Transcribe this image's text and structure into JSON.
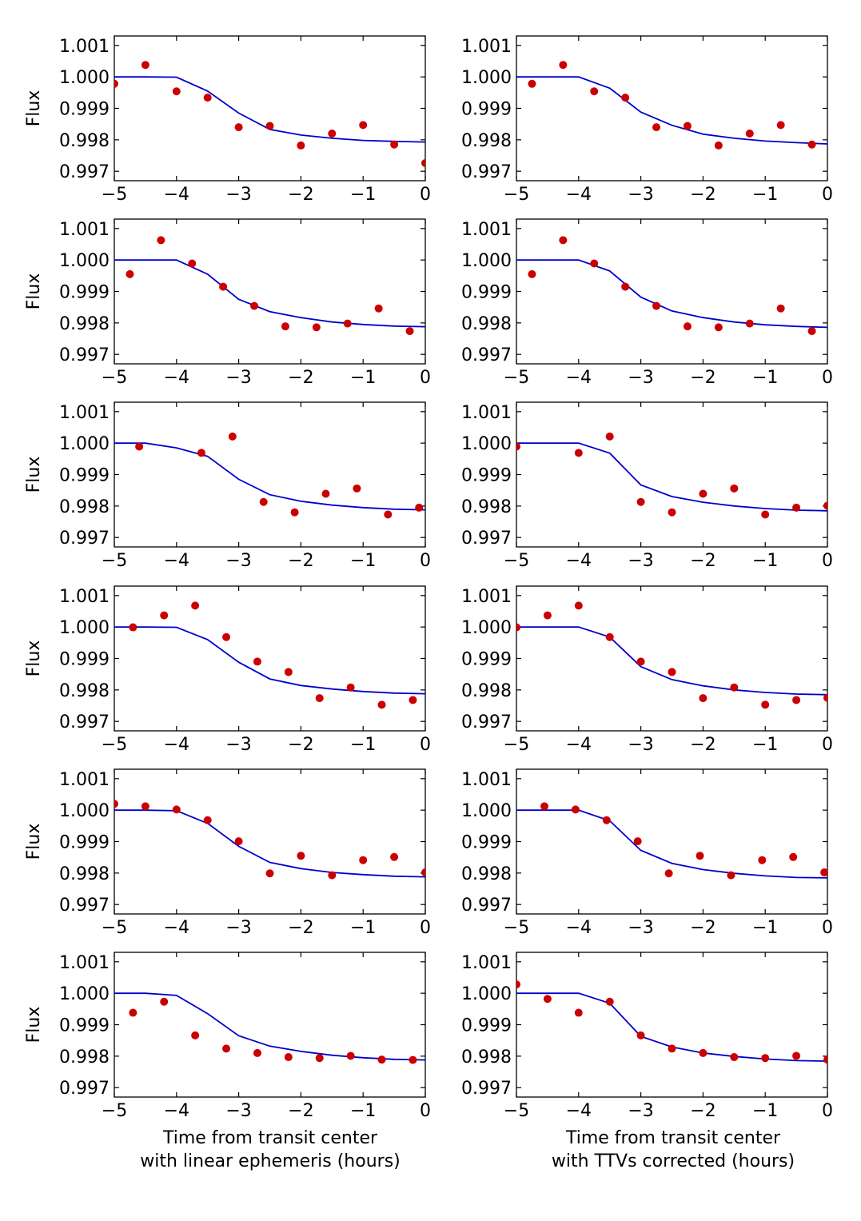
{
  "chart_data": {
    "type": "scatter",
    "layout": "6 rows x 2 columns",
    "xlim": [
      -5,
      0
    ],
    "ylim": [
      0.9967,
      1.0013
    ],
    "xticks": [
      -5,
      -4,
      -3,
      -2,
      -1,
      0
    ],
    "xtick_labels": [
      "−5",
      "−4",
      "−3",
      "−2",
      "−1",
      "0"
    ],
    "yticks": [
      1.001,
      1.0,
      0.999,
      0.998,
      0.997
    ],
    "ytick_labels": [
      "1.001",
      "1.000",
      "0.999",
      "0.998",
      "0.997"
    ],
    "ylabel": "Flux",
    "xlabels": [
      [
        "Time from transit center",
        "with linear ephemeris (hours)"
      ],
      [
        "Time from transit center",
        "with TTVs corrected (hours)"
      ]
    ],
    "series_styles": {
      "observed": {
        "marker": "circle",
        "color": "#cc0000"
      },
      "model": {
        "line": "solid",
        "color": "#0000cc"
      }
    },
    "panels": [
      {
        "row": 0,
        "col": 0,
        "model": {
          "x": [
            -5,
            -4.5,
            -4,
            -3.5,
            -3,
            -2.5,
            -2,
            -1.5,
            -1,
            -0.5,
            0
          ],
          "y": [
            1.0,
            1.0,
            0.99999,
            0.99955,
            0.99885,
            0.99833,
            0.99815,
            0.99805,
            0.99798,
            0.99795,
            0.99793
          ]
        },
        "points": {
          "x": [
            -5,
            -4.5,
            -4,
            -3.5,
            -3,
            -2.5,
            -2,
            -1.5,
            -1,
            -0.5,
            0
          ],
          "y": [
            0.99978,
            1.00038,
            0.99954,
            0.99934,
            0.9984,
            0.99844,
            0.99782,
            0.9982,
            0.99847,
            0.99785,
            0.99726
          ]
        }
      },
      {
        "row": 0,
        "col": 1,
        "model": {
          "x": [
            -5,
            -4.5,
            -4,
            -3.5,
            -3,
            -2.5,
            -2,
            -1.5,
            -1,
            -0.5,
            0
          ],
          "y": [
            1.0,
            1.0,
            1.0,
            0.99964,
            0.99888,
            0.99846,
            0.99818,
            0.99805,
            0.99796,
            0.99791,
            0.99787
          ]
        },
        "points": {
          "x": [
            -4.75,
            -4.25,
            -3.75,
            -3.25,
            -2.75,
            -2.25,
            -1.75,
            -1.25,
            -0.75,
            -0.25
          ],
          "y": [
            0.99978,
            1.00038,
            0.99954,
            0.99934,
            0.9984,
            0.99844,
            0.99782,
            0.9982,
            0.99847,
            0.99785
          ]
        }
      },
      {
        "row": 1,
        "col": 0,
        "model": {
          "x": [
            -5,
            -4.5,
            -4,
            -3.5,
            -3,
            -2.5,
            -2,
            -1.5,
            -1,
            -0.5,
            0
          ],
          "y": [
            1.0,
            1.0,
            1.0,
            0.99955,
            0.99875,
            0.99836,
            0.99817,
            0.99803,
            0.99795,
            0.9979,
            0.99788
          ]
        },
        "points": {
          "x": [
            -4.75,
            -4.25,
            -3.75,
            -3.25,
            -2.75,
            -2.25,
            -1.75,
            -1.25,
            -0.75,
            -0.25
          ],
          "y": [
            0.99955,
            1.00063,
            0.99989,
            0.99915,
            0.99854,
            0.99789,
            0.99786,
            0.99798,
            0.99846,
            0.99774
          ]
        }
      },
      {
        "row": 1,
        "col": 1,
        "model": {
          "x": [
            -5,
            -4.5,
            -4,
            -3.5,
            -3,
            -2.5,
            -2,
            -1.5,
            -1,
            -0.5,
            0
          ],
          "y": [
            1.0,
            1.0,
            1.0,
            0.99965,
            0.99882,
            0.99838,
            0.99817,
            0.99803,
            0.99794,
            0.99789,
            0.99786
          ]
        },
        "points": {
          "x": [
            -4.75,
            -4.25,
            -3.75,
            -3.25,
            -2.75,
            -2.25,
            -1.75,
            -1.25,
            -0.75,
            -0.25
          ],
          "y": [
            0.99955,
            1.00063,
            0.99989,
            0.99915,
            0.99854,
            0.99789,
            0.99786,
            0.99798,
            0.99846,
            0.99774
          ]
        }
      },
      {
        "row": 2,
        "col": 0,
        "model": {
          "x": [
            -5,
            -4.5,
            -4,
            -3.5,
            -3,
            -2.5,
            -2,
            -1.5,
            -1,
            -0.5,
            0
          ],
          "y": [
            1.0,
            1.0,
            0.99985,
            0.99958,
            0.99885,
            0.99836,
            0.99815,
            0.99803,
            0.99795,
            0.9979,
            0.99788
          ]
        },
        "points": {
          "x": [
            -4.6,
            -3.6,
            -3.1,
            -2.6,
            -2.1,
            -1.6,
            -1.1,
            -0.6,
            -0.1
          ],
          "y": [
            0.99989,
            0.99969,
            1.00021,
            0.99813,
            0.9978,
            0.99839,
            0.99856,
            0.99773,
            0.99795
          ]
        }
      },
      {
        "row": 2,
        "col": 1,
        "model": {
          "x": [
            -5,
            -4.5,
            -4,
            -3.5,
            -3,
            -2.5,
            -2,
            -1.5,
            -1,
            -0.5,
            0
          ],
          "y": [
            1.0,
            1.0,
            1.0,
            0.99968,
            0.99867,
            0.9983,
            0.99812,
            0.998,
            0.99792,
            0.99787,
            0.99785
          ]
        },
        "points": {
          "x": [
            -5,
            -4,
            -3.5,
            -3,
            -2.5,
            -2,
            -1.5,
            -1,
            -0.5,
            0
          ],
          "y": [
            0.99989,
            0.99969,
            1.00021,
            0.99813,
            0.9978,
            0.99839,
            0.99856,
            0.99773,
            0.99795,
            0.99801
          ]
        }
      },
      {
        "row": 3,
        "col": 0,
        "model": {
          "x": [
            -5,
            -4.5,
            -4,
            -3.5,
            -3,
            -2.5,
            -2,
            -1.5,
            -1,
            -0.5,
            0
          ],
          "y": [
            1.0,
            1.0,
            0.99999,
            0.9996,
            0.99888,
            0.99835,
            0.99814,
            0.99803,
            0.99795,
            0.9979,
            0.99788
          ]
        },
        "points": {
          "x": [
            -4.7,
            -4.2,
            -3.7,
            -3.2,
            -2.7,
            -2.2,
            -1.7,
            -1.2,
            -0.7,
            -0.2
          ],
          "y": [
            0.99999,
            1.00037,
            1.00068,
            0.99968,
            0.9989,
            0.99857,
            0.99774,
            0.99808,
            0.99753,
            0.99768
          ]
        }
      },
      {
        "row": 3,
        "col": 1,
        "model": {
          "x": [
            -5,
            -4.5,
            -4,
            -3.5,
            -3,
            -2.5,
            -2,
            -1.5,
            -1,
            -0.5,
            0
          ],
          "y": [
            1.0,
            1.0,
            1.0,
            0.99968,
            0.99874,
            0.99833,
            0.99813,
            0.998,
            0.99792,
            0.99787,
            0.99785
          ]
        },
        "points": {
          "x": [
            -5,
            -4.5,
            -4,
            -3.5,
            -3,
            -2.5,
            -2,
            -1.5,
            -1,
            -0.5,
            0
          ],
          "y": [
            0.99999,
            1.00037,
            1.00068,
            0.99968,
            0.9989,
            0.99857,
            0.99774,
            0.99808,
            0.99753,
            0.99768,
            0.99775
          ]
        }
      },
      {
        "row": 4,
        "col": 0,
        "model": {
          "x": [
            -5,
            -4.5,
            -4,
            -3.5,
            -3,
            -2.5,
            -2,
            -1.5,
            -1,
            -0.5,
            0
          ],
          "y": [
            1.0,
            1.0,
            0.99998,
            0.99958,
            0.99885,
            0.99834,
            0.99814,
            0.99802,
            0.99795,
            0.9979,
            0.99788
          ]
        },
        "points": {
          "x": [
            -5,
            -4.5,
            -4,
            -3.5,
            -3,
            -2.5,
            -2,
            -1.5,
            -1,
            -0.5,
            0
          ],
          "y": [
            1.0002,
            1.00012,
            1.00002,
            0.99968,
            0.99901,
            0.99799,
            0.99855,
            0.99793,
            0.99841,
            0.99851,
            0.99802
          ]
        }
      },
      {
        "row": 4,
        "col": 1,
        "model": {
          "x": [
            -5,
            -4.5,
            -4,
            -3.5,
            -3,
            -2.5,
            -2,
            -1.5,
            -1,
            -0.5,
            0
          ],
          "y": [
            1.0,
            1.0,
            1.0,
            0.99966,
            0.99872,
            0.99831,
            0.99811,
            0.99799,
            0.99791,
            0.99786,
            0.99785
          ]
        },
        "points": {
          "x": [
            -4.55,
            -4.05,
            -3.55,
            -3.05,
            -2.55,
            -2.05,
            -1.55,
            -1.05,
            -0.55,
            -0.05
          ],
          "y": [
            1.00012,
            1.00002,
            0.99968,
            0.99901,
            0.99799,
            0.99855,
            0.99793,
            0.99841,
            0.99851,
            0.99802
          ]
        }
      },
      {
        "row": 5,
        "col": 0,
        "model": {
          "x": [
            -5,
            -4.5,
            -4,
            -3.5,
            -3,
            -2.5,
            -2,
            -1.5,
            -1,
            -0.5,
            0
          ],
          "y": [
            1.0,
            1.0,
            0.99993,
            0.99935,
            0.99865,
            0.99832,
            0.99815,
            0.99803,
            0.99795,
            0.9979,
            0.99788
          ]
        },
        "points": {
          "x": [
            -4.7,
            -4.2,
            -3.7,
            -3.2,
            -2.7,
            -2.2,
            -1.7,
            -1.2,
            -0.7,
            -0.2
          ],
          "y": [
            0.99938,
            0.99973,
            0.99866,
            0.99824,
            0.9981,
            0.99797,
            0.99794,
            0.99801,
            0.99789,
            0.99788
          ]
        }
      },
      {
        "row": 5,
        "col": 1,
        "model": {
          "x": [
            -5,
            -4.5,
            -4,
            -3.5,
            -3,
            -2.5,
            -2,
            -1.5,
            -1,
            -0.5,
            0
          ],
          "y": [
            1.0,
            1.0,
            1.0,
            0.99968,
            0.99863,
            0.99829,
            0.9981,
            0.99799,
            0.99791,
            0.99786,
            0.99784
          ]
        },
        "points": {
          "x": [
            -5,
            -4.5,
            -4,
            -3.5,
            -3,
            -2.5,
            -2,
            -1.5,
            -1,
            -0.5,
            0
          ],
          "y": [
            1.00028,
            0.99982,
            0.99938,
            0.99973,
            0.99866,
            0.99824,
            0.9981,
            0.99797,
            0.99794,
            0.99801,
            0.99789
          ]
        }
      }
    ]
  }
}
